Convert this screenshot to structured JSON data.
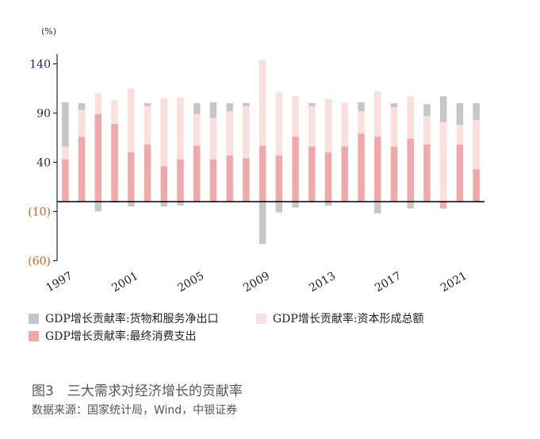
{
  "chart_data": {
    "type": "bar",
    "stacked": true,
    "unit_label": "(%)",
    "years": [
      "1997",
      "1998",
      "1999",
      "2000",
      "2001",
      "2002",
      "2003",
      "2004",
      "2005",
      "2006",
      "2007",
      "2008",
      "2009",
      "2010",
      "2011",
      "2012",
      "2013",
      "2014",
      "2015",
      "2016",
      "2017",
      "2018",
      "2019",
      "2020",
      "2021",
      "2022"
    ],
    "x_tick_labels": [
      "1997",
      "2001",
      "2005",
      "2009",
      "2013",
      "2017",
      "2021"
    ],
    "y_ticks": [
      140,
      90,
      40,
      -10,
      -60
    ],
    "y_tick_labels": [
      "140",
      "90",
      "40",
      "(10)",
      "(60)"
    ],
    "ylim": [
      -60,
      145
    ],
    "series": [
      {
        "name": "GDP增长贡献率:最终消费支出",
        "color": "#f0a9ab",
        "values": [
          43,
          66,
          89,
          79,
          50,
          58,
          36,
          43,
          57,
          43,
          47,
          44,
          57,
          47,
          66,
          56,
          50,
          56,
          69,
          66,
          56,
          64,
          58,
          -7,
          58,
          33
        ]
      },
      {
        "name": "GDP增长贡献率:资本形成总额",
        "color": "#fbdede",
        "values": [
          13,
          27,
          21,
          24,
          65,
          39,
          69,
          63,
          32,
          42,
          45,
          53,
          87,
          64,
          41,
          41,
          54,
          45,
          23,
          46,
          40,
          43,
          29,
          81,
          20,
          50
        ]
      },
      {
        "name": "GDP增长贡献率:货物和服务净出口",
        "color": "#c6c6c6",
        "values": [
          45,
          7,
          -10,
          -1,
          -5,
          3,
          -5,
          -4,
          11,
          16,
          8,
          3,
          -43,
          -11,
          -6,
          3,
          -4,
          0,
          9,
          -12,
          4,
          -7,
          12,
          26,
          22,
          17
        ]
      }
    ],
    "legend": [
      {
        "name": "GDP增长贡献率:货物和服务净出口",
        "color": "#c6c6c6"
      },
      {
        "name": "GDP增长贡献率:资本形成总额",
        "color": "#fbdede"
      },
      {
        "name": "GDP增长贡献率:最终消费支出",
        "color": "#f0a9ab"
      }
    ],
    "axis_color": "#1a2a5a",
    "negative_tick_color": "#e05a1a"
  },
  "caption": "图3　三大需求对经济增长的贡献率",
  "source": "数据来源：国家统计局，Wind，中银证券"
}
